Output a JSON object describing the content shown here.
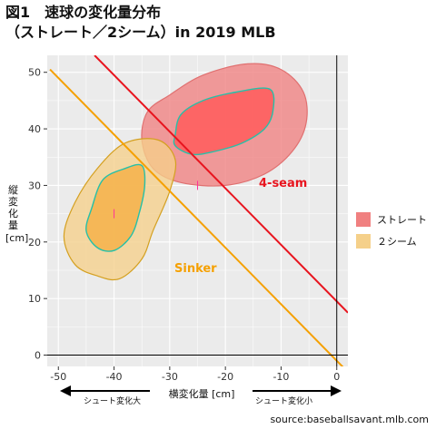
{
  "figure": {
    "title_line1": "図1　速球の変化量分布",
    "title_line2": "（ストレート／2シーム）in 2019 MLB",
    "source": "source:baseballsavant.mlb.com"
  },
  "chart_data": {
    "type": "scatter",
    "xlabel": "横変化量 [cm]",
    "ylabel_line1": "縦",
    "ylabel_line2": "変",
    "ylabel_line3": "化",
    "ylabel_line4": "量",
    "ylabel_unit": "[cm]",
    "xlim": [
      -52,
      2
    ],
    "ylim": [
      -2,
      53
    ],
    "x_ticks": [
      -50,
      -40,
      -30,
      -20,
      -10,
      0
    ],
    "y_ticks": [
      0,
      10,
      20,
      30,
      40,
      50
    ],
    "grid": true,
    "legend_position": "right",
    "series": [
      {
        "name": "ストレート",
        "fill": "#f08080",
        "outline": "#e07070",
        "inner_fill": "#ff5c5c",
        "inner_outline": "#26c0a8",
        "center": [
          -25,
          30
        ],
        "outer_contour": [
          [
            -35,
            38
          ],
          [
            -34,
            43
          ],
          [
            -30,
            46
          ],
          [
            -24,
            49.5
          ],
          [
            -16,
            51.5
          ],
          [
            -10,
            50.5
          ],
          [
            -6,
            46.5
          ],
          [
            -5.5,
            41
          ],
          [
            -8,
            36
          ],
          [
            -13,
            32
          ],
          [
            -20,
            30
          ],
          [
            -28,
            30.5
          ],
          [
            -33,
            33
          ]
        ],
        "inner_contour": [
          [
            -29,
            39
          ],
          [
            -28,
            42.5
          ],
          [
            -24,
            45
          ],
          [
            -18,
            46.5
          ],
          [
            -12,
            47
          ],
          [
            -11.5,
            43
          ],
          [
            -13,
            40
          ],
          [
            -17,
            37.5
          ],
          [
            -22,
            36
          ],
          [
            -26,
            35.5
          ],
          [
            -29,
            37
          ]
        ]
      },
      {
        "name": "２シーム",
        "fill": "#f5d08a",
        "outline": "#d4a020",
        "inner_fill": "#f5b24a",
        "inner_outline": "#26c0a8",
        "center": [
          -40,
          25
        ],
        "outer_contour": [
          [
            -47,
            27
          ],
          [
            -43,
            33
          ],
          [
            -38,
            37.5
          ],
          [
            -32,
            38
          ],
          [
            -29,
            34.5
          ],
          [
            -30,
            29
          ],
          [
            -33,
            22
          ],
          [
            -35,
            17
          ],
          [
            -39,
            13.5
          ],
          [
            -43,
            14
          ],
          [
            -47,
            16
          ],
          [
            -49,
            21
          ]
        ],
        "inner_contour": [
          [
            -44,
            26
          ],
          [
            -42,
            31
          ],
          [
            -38,
            33
          ],
          [
            -35,
            33.5
          ],
          [
            -34.5,
            30
          ],
          [
            -35.5,
            25
          ],
          [
            -37,
            21
          ],
          [
            -40,
            18.5
          ],
          [
            -43,
            19
          ],
          [
            -45,
            22
          ]
        ]
      }
    ],
    "reference_lines": [
      {
        "name": "4-seam",
        "color": "#e8141e",
        "p1": [
          -43.5,
          53
        ],
        "p2": [
          2,
          7.5
        ]
      },
      {
        "name": "Sinker",
        "color": "#f5a000",
        "p1": [
          -51.5,
          50.5
        ],
        "p2": [
          2,
          -3
        ]
      }
    ],
    "annotations": {
      "four_seam": "4-seam",
      "sinker": "Sinker",
      "left_arrow": "シュート変化大",
      "right_arrow": "シュート変化小"
    },
    "colors": {
      "four_seam_text": "#e8141e",
      "sinker_text": "#f5a000",
      "panel_background": "#ebebeb"
    }
  }
}
